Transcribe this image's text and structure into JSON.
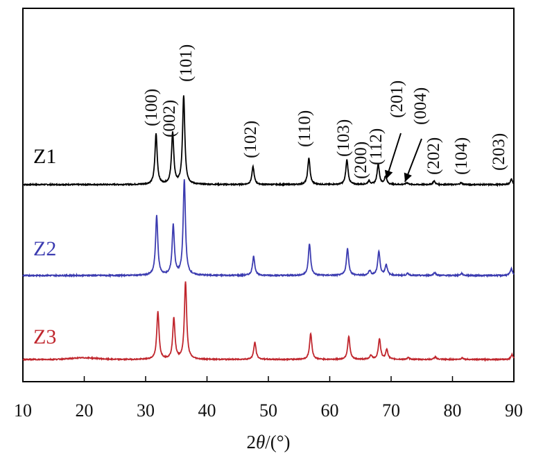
{
  "chart_data": {
    "type": "line",
    "title": "",
    "xlabel_parts": [
      "2",
      "θ",
      "/(°)"
    ],
    "ylabel": "",
    "xlim": [
      10,
      90
    ],
    "xticks": [
      10,
      20,
      30,
      40,
      50,
      60,
      70,
      80,
      90
    ],
    "grid": false,
    "legend": "none",
    "series": [
      {
        "name": "Z1",
        "color": "#000000",
        "baseline_offset": 2.0,
        "peaks": [
          {
            "x": 31.7,
            "h": 0.57
          },
          {
            "x": 34.4,
            "h": 0.58
          },
          {
            "x": 36.2,
            "h": 1.0
          },
          {
            "x": 47.5,
            "h": 0.2
          },
          {
            "x": 56.6,
            "h": 0.3
          },
          {
            "x": 62.8,
            "h": 0.28
          },
          {
            "x": 66.4,
            "h": 0.04
          },
          {
            "x": 67.9,
            "h": 0.23
          },
          {
            "x": 69.1,
            "h": 0.09
          },
          {
            "x": 72.6,
            "h": 0.02
          },
          {
            "x": 77.0,
            "h": 0.04
          },
          {
            "x": 81.4,
            "h": 0.02
          },
          {
            "x": 89.6,
            "h": 0.06
          }
        ]
      },
      {
        "name": "Z2",
        "color": "#3b3bb0",
        "baseline_offset": 1.0,
        "peaks": [
          {
            "x": 31.8,
            "h": 0.62
          },
          {
            "x": 34.5,
            "h": 0.52
          },
          {
            "x": 36.3,
            "h": 1.0
          },
          {
            "x": 47.6,
            "h": 0.2
          },
          {
            "x": 56.7,
            "h": 0.33
          },
          {
            "x": 62.9,
            "h": 0.28
          },
          {
            "x": 66.5,
            "h": 0.05
          },
          {
            "x": 68.0,
            "h": 0.25
          },
          {
            "x": 69.2,
            "h": 0.11
          },
          {
            "x": 72.7,
            "h": 0.02
          },
          {
            "x": 77.1,
            "h": 0.03
          },
          {
            "x": 81.5,
            "h": 0.02
          },
          {
            "x": 89.6,
            "h": 0.07
          }
        ]
      },
      {
        "name": "Z3",
        "color": "#c0262d",
        "baseline_offset": 0.0,
        "peaks": [
          {
            "x": 32.0,
            "h": 0.58
          },
          {
            "x": 34.6,
            "h": 0.5
          },
          {
            "x": 36.5,
            "h": 0.95
          },
          {
            "x": 47.8,
            "h": 0.21
          },
          {
            "x": 56.9,
            "h": 0.32
          },
          {
            "x": 63.1,
            "h": 0.28
          },
          {
            "x": 66.7,
            "h": 0.05
          },
          {
            "x": 68.1,
            "h": 0.25
          },
          {
            "x": 69.3,
            "h": 0.12
          },
          {
            "x": 72.8,
            "h": 0.02
          },
          {
            "x": 77.2,
            "h": 0.03
          },
          {
            "x": 81.6,
            "h": 0.02
          },
          {
            "x": 89.7,
            "h": 0.06
          }
        ]
      }
    ],
    "peak_labels": [
      {
        "text": "(100)",
        "x": 31.7
      },
      {
        "text": "(002)",
        "x": 34.4
      },
      {
        "text": "(101)",
        "x": 36.2
      },
      {
        "text": "(102)",
        "x": 47.5
      },
      {
        "text": "(110)",
        "x": 56.6
      },
      {
        "text": "(103)",
        "x": 62.8
      },
      {
        "text": "(200)",
        "x": 66.4
      },
      {
        "text": "(112)",
        "x": 67.9
      },
      {
        "text": "(201)",
        "x": 69.1
      },
      {
        "text": "(004)",
        "x": 72.6
      },
      {
        "text": "(202)",
        "x": 77.0
      },
      {
        "text": "(104)",
        "x": 81.4
      },
      {
        "text": "(203)",
        "x": 89.6
      }
    ]
  }
}
